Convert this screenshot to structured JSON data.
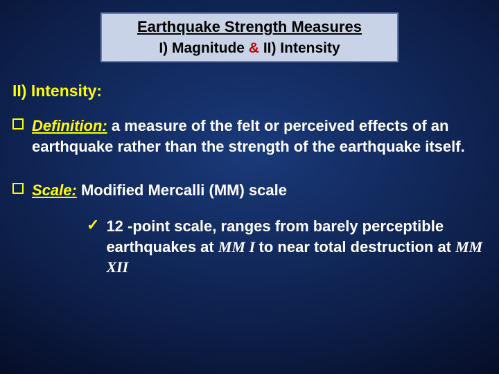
{
  "colors": {
    "header_bg": "#c9d3e8",
    "header_border": "#6a7ba8",
    "accent_yellow": "#ffff00",
    "accent_red": "#c00000",
    "text_header": "#000000",
    "text_body": "#ffffff",
    "bg_gradient_center": "#1a3a7a",
    "bg_gradient_edge": "#050a20"
  },
  "typography": {
    "title_fontsize": 22,
    "body_fontsize": 22,
    "heading_fontsize": 23,
    "mm_font_family": "Times New Roman"
  },
  "header": {
    "title": "Earthquake Strength Measures",
    "sub_left": "I) Magnitude",
    "amp": " & ",
    "sub_right": " II) Intensity"
  },
  "section_heading": "II) Intensity:",
  "bullets": [
    {
      "label": "Definition:",
      "text": " a measure of the felt or perceived effects of an earthquake rather than the strength of the earthquake itself."
    },
    {
      "label": "Scale:",
      "text": " Modified Mercalli (MM) scale"
    }
  ],
  "sub_bullet": {
    "pre": "12 -point scale, ranges from barely perceptible earthquakes at ",
    "mm1": " MM I ",
    "mid": " to near total destruction at ",
    "mm2": " MM XII"
  }
}
